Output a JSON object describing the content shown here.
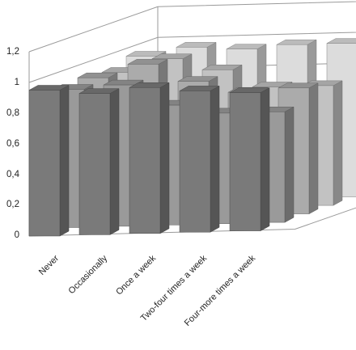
{
  "chart_data": {
    "type": "bar",
    "title": "",
    "xlabel": "",
    "ylabel": "",
    "ylim": [
      0,
      1.2
    ],
    "yticks": [
      "0",
      "0,2",
      "0,4",
      "0,6",
      "0,8",
      "1",
      "1,2"
    ],
    "categories": [
      "Never",
      "Occasionally",
      "Once a week",
      "Two-four times a week",
      "Four-more times a week"
    ],
    "series": [
      {
        "values": [
          0.95,
          0.92,
          0.95,
          0.92,
          0.9
        ],
        "color": "#7a7a7a"
      },
      {
        "values": [
          0.9,
          0.92,
          0.78,
          0.72,
          0.72
        ],
        "color": "#9a9a9a"
      },
      {
        "values": [
          0.92,
          1.0,
          0.88,
          0.8,
          0.82
        ],
        "color": "#ababab"
      },
      {
        "values": [
          0.9,
          0.98,
          0.9,
          0.78,
          0.78
        ],
        "color": "#c2c2c2"
      },
      {
        "values": [
          0.95,
          1.0,
          0.98,
          1.0,
          1.0
        ],
        "color": "#dcdcdc"
      }
    ],
    "grid": true,
    "legend": "none"
  }
}
